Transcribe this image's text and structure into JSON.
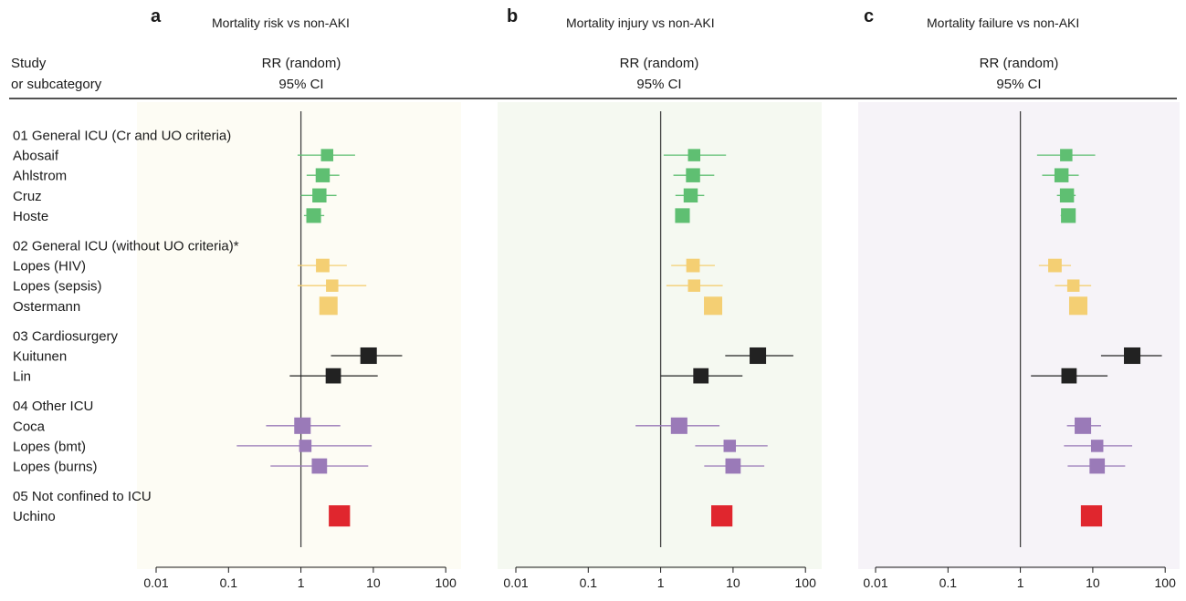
{
  "header": {
    "study_label_1": "Study",
    "study_label_2": "or subcategory",
    "rr_label": "RR (random)",
    "ci_label": "95% CI"
  },
  "chart_data": {
    "type": "forest",
    "x_scale": "log",
    "xlim": [
      0.01,
      100
    ],
    "x_ticks": [
      0.01,
      0.1,
      1,
      10,
      100
    ],
    "x_tick_labels": [
      "0.01",
      "0.1",
      "1",
      "10",
      "100"
    ],
    "reference_line": 1,
    "group_colors": {
      "g1": "#5fbf72",
      "g2": "#f4cf73",
      "g3": "#222222",
      "g4": "#9a7ab8",
      "g5": "#e0262e"
    },
    "panels": [
      {
        "letter": "a",
        "title": "Mortality risk vs non-AKI",
        "background": "#fdfcf4"
      },
      {
        "letter": "b",
        "title": "Mortality injury vs non-AKI",
        "background": "#f5f9f1"
      },
      {
        "letter": "c",
        "title": "Mortality failure vs non-AKI",
        "background": "#f6f3f8"
      }
    ],
    "rows": [
      {
        "kind": "group",
        "label": "01 General ICU (Cr and UO criteria)"
      },
      {
        "kind": "study",
        "label": "Abosaif",
        "group": "g1",
        "weight": 0.5,
        "estimates": [
          {
            "rr": 2.3,
            "lo": 0.9,
            "hi": 5.6
          },
          {
            "rr": 2.9,
            "lo": 1.1,
            "hi": 8.0
          },
          {
            "rr": 4.3,
            "lo": 1.7,
            "hi": 10.8
          }
        ]
      },
      {
        "kind": "study",
        "label": "Ahlstrom",
        "group": "g1",
        "weight": 0.65,
        "estimates": [
          {
            "rr": 2.0,
            "lo": 1.2,
            "hi": 3.4
          },
          {
            "rr": 2.8,
            "lo": 1.5,
            "hi": 5.5
          },
          {
            "rr": 3.7,
            "lo": 2.0,
            "hi": 6.4
          }
        ]
      },
      {
        "kind": "study",
        "label": "Cruz",
        "group": "g1",
        "weight": 0.65,
        "estimates": [
          {
            "rr": 1.8,
            "lo": 1.0,
            "hi": 3.1
          },
          {
            "rr": 2.6,
            "lo": 1.6,
            "hi": 4.0
          },
          {
            "rr": 4.4,
            "lo": 3.2,
            "hi": 5.8
          }
        ]
      },
      {
        "kind": "study",
        "label": "Hoste",
        "group": "g1",
        "weight": 0.7,
        "estimates": [
          {
            "rr": 1.5,
            "lo": 1.1,
            "hi": 2.1
          },
          {
            "rr": 2.0,
            "lo": 1.6,
            "hi": 2.5
          },
          {
            "rr": 4.6,
            "lo": 3.6,
            "hi": 5.6
          }
        ]
      },
      {
        "kind": "group",
        "label": "02 General ICU (without UO criteria)*"
      },
      {
        "kind": "study",
        "label": "Lopes (HIV)",
        "group": "g2",
        "weight": 0.6,
        "estimates": [
          {
            "rr": 2.0,
            "lo": 0.9,
            "hi": 4.3
          },
          {
            "rr": 2.8,
            "lo": 1.4,
            "hi": 5.6
          },
          {
            "rr": 3.0,
            "lo": 1.8,
            "hi": 5.0
          }
        ]
      },
      {
        "kind": "study",
        "label": "Lopes (sepsis)",
        "group": "g2",
        "weight": 0.5,
        "estimates": [
          {
            "rr": 2.7,
            "lo": 0.9,
            "hi": 8.0
          },
          {
            "rr": 2.9,
            "lo": 1.2,
            "hi": 7.2
          },
          {
            "rr": 5.4,
            "lo": 3.0,
            "hi": 9.5
          }
        ]
      },
      {
        "kind": "study",
        "label": "Ostermann",
        "group": "g2",
        "weight": 1.0,
        "estimates": [
          {
            "rr": 2.4,
            "lo": 2.0,
            "hi": 2.9
          },
          {
            "rr": 5.3,
            "lo": 4.6,
            "hi": 6.1
          },
          {
            "rr": 6.3,
            "lo": 5.5,
            "hi": 7.2
          }
        ]
      },
      {
        "kind": "group",
        "label": "03 Cardiosurgery"
      },
      {
        "kind": "study",
        "label": "Kuitunen",
        "group": "g3",
        "weight": 0.85,
        "estimates": [
          {
            "rr": 8.6,
            "lo": 2.6,
            "hi": 25.0
          },
          {
            "rr": 22.0,
            "lo": 7.8,
            "hi": 68.0
          },
          {
            "rr": 35.0,
            "lo": 13.0,
            "hi": 90.0
          }
        ]
      },
      {
        "kind": "study",
        "label": "Lin",
        "group": "g3",
        "weight": 0.75,
        "estimates": [
          {
            "rr": 2.8,
            "lo": 0.7,
            "hi": 11.5
          },
          {
            "rr": 3.6,
            "lo": 1.0,
            "hi": 13.5
          },
          {
            "rr": 4.7,
            "lo": 1.4,
            "hi": 16.0
          }
        ]
      },
      {
        "kind": "group",
        "label": "04 Other ICU"
      },
      {
        "kind": "study",
        "label": "Coca",
        "group": "g4",
        "weight": 0.85,
        "estimates": [
          {
            "rr": 1.05,
            "lo": 0.33,
            "hi": 3.5
          },
          {
            "rr": 1.8,
            "lo": 0.45,
            "hi": 6.5
          },
          {
            "rr": 7.3,
            "lo": 4.4,
            "hi": 13.0
          }
        ]
      },
      {
        "kind": "study",
        "label": "Lopes (bmt)",
        "group": "g4",
        "weight": 0.5,
        "estimates": [
          {
            "rr": 1.15,
            "lo": 0.13,
            "hi": 9.5
          },
          {
            "rr": 9.0,
            "lo": 3.0,
            "hi": 30.0
          },
          {
            "rr": 11.5,
            "lo": 4.0,
            "hi": 35.0
          }
        ]
      },
      {
        "kind": "study",
        "label": "Lopes (burns)",
        "group": "g4",
        "weight": 0.75,
        "estimates": [
          {
            "rr": 1.8,
            "lo": 0.38,
            "hi": 8.5
          },
          {
            "rr": 10.0,
            "lo": 4.0,
            "hi": 27.0
          },
          {
            "rr": 11.5,
            "lo": 4.5,
            "hi": 28.0
          }
        ]
      },
      {
        "kind": "group",
        "label": "05 Not confined to ICU"
      },
      {
        "kind": "study",
        "label": "Uchino",
        "group": "g5",
        "weight": 1.25,
        "estimates": [
          {
            "rr": 3.4,
            "lo": 3.0,
            "hi": 4.0
          },
          {
            "rr": 7.0,
            "lo": 6.0,
            "hi": 8.1
          },
          {
            "rr": 9.6,
            "lo": 8.4,
            "hi": 11.0
          }
        ]
      }
    ]
  }
}
